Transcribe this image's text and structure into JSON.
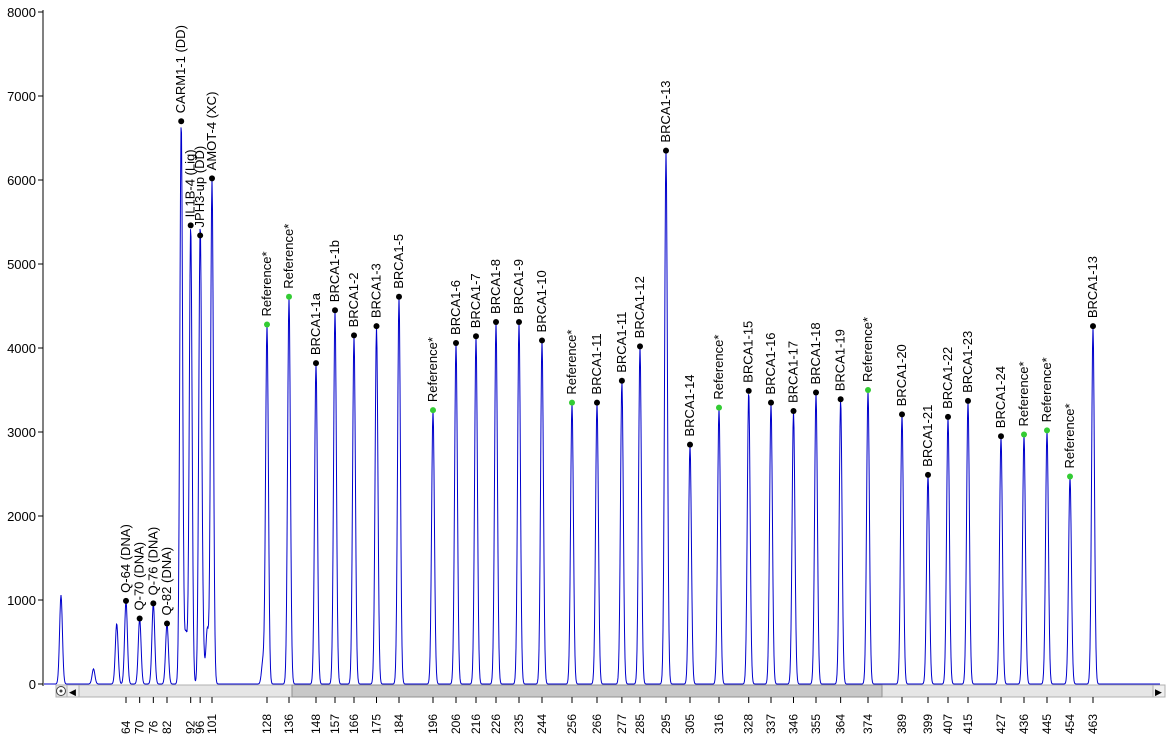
{
  "chart_data": {
    "type": "line",
    "title": "",
    "xlabel": "",
    "ylabel": "",
    "ylim": [
      0,
      8000
    ],
    "yticks": [
      0,
      1000,
      2000,
      3000,
      4000,
      5000,
      6000,
      7000,
      8000
    ],
    "xticks": [
      "64",
      "70",
      "76",
      "82",
      "92",
      "96",
      "101",
      "128",
      "136",
      "148",
      "157",
      "166",
      "175",
      "184",
      "196",
      "206",
      "216",
      "226",
      "235",
      "244",
      "256",
      "266",
      "277",
      "285",
      "295",
      "305",
      "316",
      "328",
      "337",
      "346",
      "355",
      "364",
      "374",
      "389",
      "399",
      "407",
      "415",
      "427",
      "436",
      "445",
      "454",
      "463"
    ],
    "series_color": "#0000cc",
    "reference_marker_color": "#33cc33",
    "probe_marker_color": "#000000",
    "unlabeled_peaks": [
      {
        "x": 50,
        "y": 1060
      },
      {
        "x": 57,
        "y": 180
      },
      {
        "x": 62,
        "y": 720
      },
      {
        "x": 90,
        "y": 600
      },
      {
        "x": 97,
        "y": 560
      },
      {
        "x": 99,
        "y": 650
      },
      {
        "x": 126,
        "y": 270
      }
    ],
    "peaks": [
      {
        "label": "Q-64 (DNA)",
        "x": 64,
        "y": 990,
        "type": "probe"
      },
      {
        "label": "Q-70 (DNA)",
        "x": 70,
        "y": 780,
        "type": "probe"
      },
      {
        "label": "Q-76 (DNA)",
        "x": 76,
        "y": 960,
        "type": "probe"
      },
      {
        "label": "Q-82 (DNA)",
        "x": 82,
        "y": 720,
        "type": "probe"
      },
      {
        "label": "CARM1-1 (DD)",
        "x": 88,
        "y": 6700,
        "type": "probe"
      },
      {
        "label": "IL1B-4 (Lig)",
        "x": 92,
        "y": 5460,
        "type": "probe"
      },
      {
        "label": "JPH3-up (DD)",
        "x": 96,
        "y": 5340,
        "type": "probe"
      },
      {
        "label": "AMOT-4 (XC)",
        "x": 101,
        "y": 6020,
        "type": "probe"
      },
      {
        "label": "Reference*",
        "x": 128,
        "y": 4280,
        "type": "reference"
      },
      {
        "label": "Reference*",
        "x": 136,
        "y": 4610,
        "type": "reference"
      },
      {
        "label": "BRCA1-1a",
        "x": 148,
        "y": 3820,
        "type": "probe"
      },
      {
        "label": "BRCA1-1b",
        "x": 157,
        "y": 4450,
        "type": "probe"
      },
      {
        "label": "BRCA1-2",
        "x": 166,
        "y": 4150,
        "type": "probe"
      },
      {
        "label": "BRCA1-3",
        "x": 175,
        "y": 4260,
        "type": "probe"
      },
      {
        "label": "BRCA1-5",
        "x": 184,
        "y": 4610,
        "type": "probe"
      },
      {
        "label": "Reference*",
        "x": 196,
        "y": 3260,
        "type": "reference"
      },
      {
        "label": "BRCA1-6",
        "x": 206,
        "y": 4060,
        "type": "probe"
      },
      {
        "label": "BRCA1-7",
        "x": 216,
        "y": 4140,
        "type": "probe"
      },
      {
        "label": "BRCA1-8",
        "x": 226,
        "y": 4310,
        "type": "probe"
      },
      {
        "label": "BRCA1-9",
        "x": 235,
        "y": 4310,
        "type": "probe"
      },
      {
        "label": "BRCA1-10",
        "x": 244,
        "y": 4090,
        "type": "probe"
      },
      {
        "label": "Reference*",
        "x": 256,
        "y": 3350,
        "type": "reference"
      },
      {
        "label": "BRCA1-11",
        "x": 266,
        "y": 3350,
        "type": "probe"
      },
      {
        "label": "BRCA1-11",
        "x": 277,
        "y": 3610,
        "type": "probe"
      },
      {
        "label": "BRCA1-12",
        "x": 285,
        "y": 4020,
        "type": "probe"
      },
      {
        "label": "BRCA1-13",
        "x": 295,
        "y": 6350,
        "type": "probe"
      },
      {
        "label": "BRCA1-14",
        "x": 305,
        "y": 2850,
        "type": "probe"
      },
      {
        "label": "Reference*",
        "x": 316,
        "y": 3290,
        "type": "reference"
      },
      {
        "label": "BRCA1-15",
        "x": 328,
        "y": 3490,
        "type": "probe"
      },
      {
        "label": "BRCA1-16",
        "x": 337,
        "y": 3350,
        "type": "probe"
      },
      {
        "label": "BRCA1-17",
        "x": 346,
        "y": 3250,
        "type": "probe"
      },
      {
        "label": "BRCA1-18",
        "x": 355,
        "y": 3470,
        "type": "probe"
      },
      {
        "label": "BRCA1-19",
        "x": 364,
        "y": 3390,
        "type": "probe"
      },
      {
        "label": "Reference*",
        "x": 374,
        "y": 3500,
        "type": "reference"
      },
      {
        "label": "BRCA1-20",
        "x": 389,
        "y": 3210,
        "type": "probe"
      },
      {
        "label": "BRCA1-21",
        "x": 399,
        "y": 2490,
        "type": "probe"
      },
      {
        "label": "BRCA1-22",
        "x": 407,
        "y": 3180,
        "type": "probe"
      },
      {
        "label": "BRCA1-23",
        "x": 415,
        "y": 3370,
        "type": "probe"
      },
      {
        "label": "BRCA1-24",
        "x": 427,
        "y": 2950,
        "type": "probe"
      },
      {
        "label": "Reference*",
        "x": 436,
        "y": 2970,
        "type": "reference"
      },
      {
        "label": "Reference*",
        "x": 445,
        "y": 3020,
        "type": "reference"
      },
      {
        "label": "Reference*",
        "x": 454,
        "y": 2470,
        "type": "reference"
      },
      {
        "label": "BRCA1-13",
        "x": 463,
        "y": 4260,
        "type": "probe"
      }
    ]
  }
}
